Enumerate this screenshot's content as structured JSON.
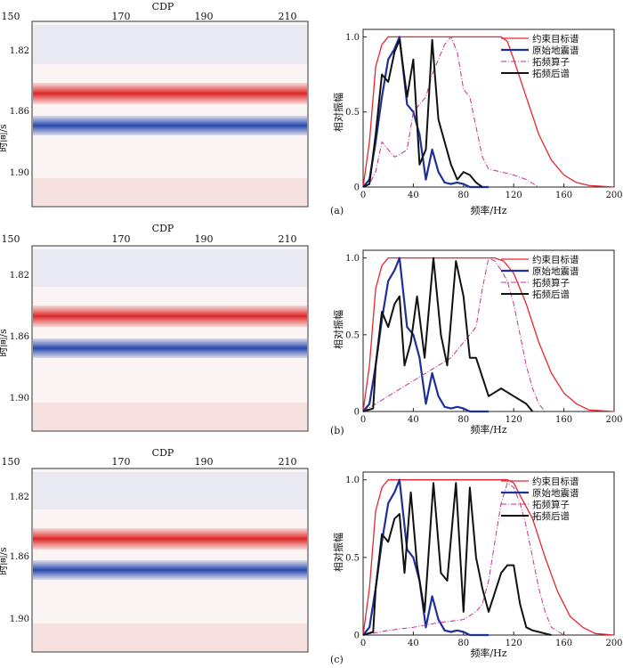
{
  "panels": [
    {
      "label": "(a)",
      "seismic": {
        "xlabel": "CDP",
        "ylabel": "时间/s",
        "xticks": [
          "150",
          "170",
          "190",
          "210"
        ],
        "yticks": [
          "1.82",
          "1.86",
          "1.90"
        ]
      },
      "chart_data": {
        "type": "line",
        "xlabel": "频率/Hz",
        "ylabel": "相对振幅",
        "xlim": [
          0,
          200
        ],
        "ylim": [
          0,
          1.05
        ],
        "xticks": [
          "0",
          "40",
          "80",
          "120",
          "160",
          "200"
        ],
        "yticks": [
          "0",
          "0.5",
          "1.0"
        ],
        "series": [
          {
            "name": "约束目标谱",
            "color": "#e8252e",
            "style": "solid",
            "width": 1.3,
            "x": [
              0,
              5,
              10,
              15,
              20,
              110,
              115,
              120,
              130,
              140,
              150,
              160,
              170,
              180,
              200
            ],
            "y": [
              0,
              0.3,
              0.8,
              0.95,
              1.0,
              1.0,
              0.97,
              0.85,
              0.6,
              0.35,
              0.18,
              0.08,
              0.03,
              0.01,
              0
            ]
          },
          {
            "name": "原始地震谱",
            "color": "#1f2f9a",
            "style": "solid",
            "width": 2.2,
            "x": [
              0,
              5,
              10,
              15,
              20,
              25,
              29,
              35,
              40,
              45,
              50,
              55,
              60,
              65,
              70,
              75,
              80,
              85,
              90,
              100
            ],
            "y": [
              0,
              0.05,
              0.3,
              0.6,
              0.85,
              0.92,
              1.0,
              0.55,
              0.5,
              0.35,
              0.05,
              0.25,
              0.1,
              0.03,
              0.02,
              0.03,
              0.02,
              0,
              0,
              0
            ]
          },
          {
            "name": "拓频算子",
            "color": "#c0338c",
            "style": "dashdot",
            "width": 1,
            "x": [
              0,
              5,
              10,
              15,
              20,
              25,
              30,
              35,
              40,
              45,
              50,
              55,
              60,
              65,
              70,
              75,
              80,
              85,
              90,
              95,
              100,
              110,
              120,
              130,
              140
            ],
            "y": [
              0,
              0.02,
              0.1,
              0.3,
              0.25,
              0.2,
              0.22,
              0.25,
              0.5,
              0.55,
              0.6,
              0.75,
              0.85,
              0.95,
              1.0,
              0.9,
              0.65,
              0.6,
              0.4,
              0.2,
              0.12,
              0.1,
              0.08,
              0.05,
              0
            ]
          },
          {
            "name": "拓频后谱",
            "color": "#111111",
            "style": "solid",
            "width": 2,
            "x": [
              0,
              5,
              10,
              15,
              20,
              25,
              29,
              35,
              40,
              45,
              50,
              55,
              60,
              65,
              70,
              75,
              80,
              85,
              90,
              95
            ],
            "y": [
              0,
              0.02,
              0.35,
              0.75,
              0.7,
              0.9,
              0.98,
              0.6,
              0.85,
              0.15,
              0.25,
              0.98,
              0.45,
              0.3,
              0.15,
              0.05,
              0.1,
              0.08,
              0.03,
              0
            ]
          }
        ]
      }
    },
    {
      "label": "(b)",
      "seismic": {
        "xlabel": "CDP",
        "ylabel": "时间/s",
        "xticks": [
          "150",
          "170",
          "190",
          "210"
        ],
        "yticks": [
          "1.82",
          "1.86",
          "1.90"
        ]
      },
      "chart_data": {
        "type": "line",
        "xlabel": "频率/Hz",
        "ylabel": "相对振幅",
        "xlim": [
          0,
          200
        ],
        "ylim": [
          0,
          1.05
        ],
        "xticks": [
          "0",
          "40",
          "80",
          "120",
          "160",
          "200"
        ],
        "yticks": [
          "0",
          "0.5",
          "1.0"
        ],
        "series": [
          {
            "name": "约束目标谱",
            "color": "#e8252e",
            "style": "solid",
            "width": 1.3,
            "x": [
              0,
              5,
              10,
              15,
              20,
              105,
              112,
              120,
              130,
              140,
              150,
              160,
              170,
              180,
              200
            ],
            "y": [
              0,
              0.3,
              0.8,
              0.95,
              1.0,
              1.0,
              0.98,
              0.9,
              0.7,
              0.45,
              0.25,
              0.12,
              0.05,
              0.01,
              0
            ]
          },
          {
            "name": "原始地震谱",
            "color": "#1f2f9a",
            "style": "solid",
            "width": 2.2,
            "x": [
              0,
              5,
              10,
              15,
              20,
              25,
              29,
              35,
              40,
              45,
              50,
              55,
              60,
              65,
              70,
              75,
              80,
              85,
              90,
              100
            ],
            "y": [
              0,
              0.05,
              0.3,
              0.6,
              0.85,
              0.92,
              1.0,
              0.55,
              0.5,
              0.35,
              0.05,
              0.25,
              0.1,
              0.03,
              0.02,
              0.03,
              0.02,
              0,
              0,
              0
            ]
          },
          {
            "name": "拓频算子",
            "color": "#c0338c",
            "style": "dashdot",
            "width": 1,
            "x": [
              0,
              10,
              20,
              30,
              40,
              50,
              60,
              70,
              80,
              90,
              95,
              100,
              105,
              110,
              115,
              120,
              125,
              130,
              135,
              140,
              145
            ],
            "y": [
              0,
              0.05,
              0.1,
              0.15,
              0.2,
              0.25,
              0.3,
              0.35,
              0.45,
              0.55,
              0.8,
              1.0,
              0.98,
              0.92,
              0.85,
              0.7,
              0.5,
              0.3,
              0.15,
              0.05,
              0
            ]
          },
          {
            "name": "拓频后谱",
            "color": "#111111",
            "style": "solid",
            "width": 2,
            "x": [
              0,
              8,
              10,
              15,
              20,
              25,
              29,
              33,
              38,
              43,
              49,
              56,
              62,
              67,
              74,
              80,
              85,
              90,
              100,
              110,
              120,
              130,
              135
            ],
            "y": [
              0,
              0.02,
              0.3,
              0.65,
              0.55,
              0.7,
              0.75,
              0.3,
              0.45,
              0.75,
              0.35,
              1.0,
              0.5,
              0.3,
              0.98,
              0.75,
              0.35,
              0.35,
              0.1,
              0.15,
              0.1,
              0.05,
              0
            ]
          }
        ]
      }
    },
    {
      "label": "(c)",
      "seismic": {
        "xlabel": "CDP",
        "ylabel": "时间/s",
        "xticks": [
          "150",
          "170",
          "190",
          "210"
        ],
        "yticks": [
          "1.82",
          "1.86",
          "1.90"
        ]
      },
      "chart_data": {
        "type": "line",
        "xlabel": "频率/Hz",
        "ylabel": "相对振幅",
        "xlim": [
          0,
          200
        ],
        "ylim": [
          0,
          1.05
        ],
        "xticks": [
          "0",
          "40",
          "80",
          "120",
          "160",
          "200"
        ],
        "yticks": [
          "0",
          "0.5",
          "1.0"
        ],
        "series": [
          {
            "name": "约束目标谱",
            "color": "#e8252e",
            "style": "solid",
            "width": 1.3,
            "x": [
              0,
              5,
              10,
              15,
              20,
              115,
              120,
              125,
              135,
              145,
              155,
              165,
              175,
              185,
              200
            ],
            "y": [
              0,
              0.3,
              0.8,
              0.95,
              1.0,
              1.0,
              0.98,
              0.9,
              0.75,
              0.5,
              0.28,
              0.12,
              0.05,
              0.01,
              0
            ]
          },
          {
            "name": "原始地震谱",
            "color": "#1f2f9a",
            "style": "solid",
            "width": 2.2,
            "x": [
              0,
              5,
              10,
              15,
              20,
              25,
              29,
              35,
              40,
              45,
              50,
              55,
              60,
              65,
              70,
              75,
              80,
              85,
              90,
              100
            ],
            "y": [
              0,
              0.05,
              0.3,
              0.6,
              0.85,
              0.92,
              1.0,
              0.55,
              0.5,
              0.35,
              0.05,
              0.25,
              0.1,
              0.03,
              0.02,
              0.03,
              0.02,
              0,
              0,
              0
            ]
          },
          {
            "name": "拓频算子",
            "color": "#c0338c",
            "style": "dashdot",
            "width": 1,
            "x": [
              0,
              20,
              40,
              60,
              80,
              90,
              95,
              100,
              105,
              110,
              115,
              120,
              125,
              130,
              135,
              140,
              145,
              150,
              160
            ],
            "y": [
              0,
              0.03,
              0.05,
              0.08,
              0.1,
              0.15,
              0.2,
              0.35,
              0.6,
              0.85,
              0.98,
              0.95,
              0.85,
              0.7,
              0.5,
              0.3,
              0.15,
              0.05,
              0
            ]
          },
          {
            "name": "拓频后谱",
            "color": "#111111",
            "style": "solid",
            "width": 2,
            "x": [
              0,
              8,
              10,
              15,
              20,
              25,
              29,
              33,
              38,
              43,
              49,
              56,
              62,
              67,
              74,
              80,
              85,
              90,
              95,
              100,
              110,
              115,
              120,
              125,
              130,
              135,
              140,
              145,
              150
            ],
            "y": [
              0,
              0.02,
              0.3,
              0.65,
              0.6,
              0.75,
              0.78,
              0.4,
              0.92,
              0.45,
              0.15,
              0.98,
              0.4,
              0.35,
              0.98,
              0.15,
              0.95,
              0.5,
              0.3,
              0.15,
              0.4,
              0.45,
              0.45,
              0.2,
              0.05,
              0.03,
              0.02,
              0.01,
              0
            ]
          }
        ]
      }
    }
  ]
}
